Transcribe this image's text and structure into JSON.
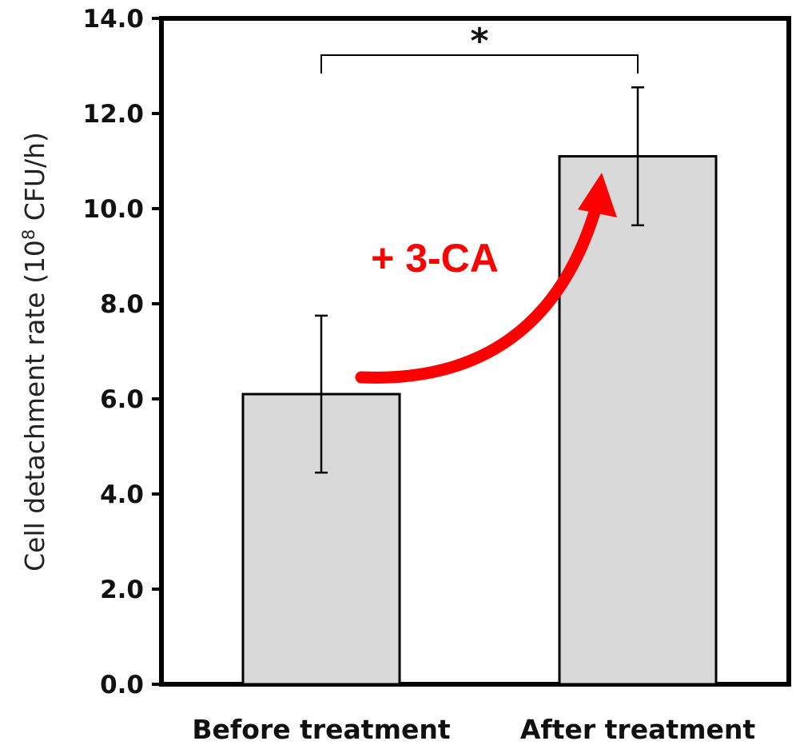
{
  "chart_data": {
    "type": "bar",
    "categories": [
      "Before treatment",
      "After treatment"
    ],
    "values": [
      6.1,
      11.1
    ],
    "errors": [
      1.65,
      1.45
    ],
    "ylim": [
      0,
      14
    ],
    "yticks": [
      "0.0",
      "2.0",
      "4.0",
      "6.0",
      "8.0",
      "10.0",
      "12.0",
      "14.0"
    ],
    "ylabel": {
      "before": "Cell detachment rate (10",
      "sup": "8",
      "after": " CFU/h)"
    },
    "xlabel": "",
    "grid": false,
    "annotations": {
      "arrow_label": "+ 3-CA",
      "significance": "*"
    }
  },
  "colors": {
    "bar_fill": "#d9d9d9",
    "bar_stroke": "#000000",
    "axis": "#000000",
    "arrow": "#ff0000"
  }
}
